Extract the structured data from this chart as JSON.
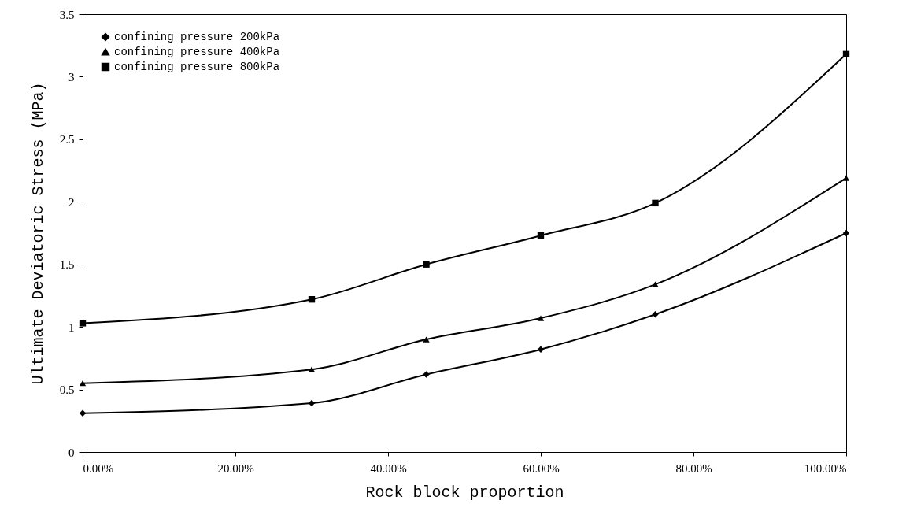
{
  "chart_data": {
    "type": "line",
    "xlabel": "Rock block proportion",
    "ylabel": "Ultimate Deviatoric Stress (MPa)",
    "x": [
      0,
      30,
      45,
      60,
      75,
      100
    ],
    "xlim": [
      0,
      100
    ],
    "xticks": [
      {
        "value": 0,
        "label": "0.00%"
      },
      {
        "value": 20,
        "label": "20.00%"
      },
      {
        "value": 40,
        "label": "40.00%"
      },
      {
        "value": 60,
        "label": "60.00%"
      },
      {
        "value": 80,
        "label": "80.00%"
      },
      {
        "value": 100,
        "label": "100.00%"
      }
    ],
    "ylim": [
      0,
      3.5
    ],
    "yticks": [
      0,
      0.5,
      1,
      1.5,
      2,
      2.5,
      3,
      3.5
    ],
    "grid": false,
    "legend": "top left",
    "series": [
      {
        "name": "confining pressure 200kPa",
        "color": "#000000",
        "marker": "diamond",
        "values": [
          0.31,
          0.39,
          0.62,
          0.82,
          1.1,
          1.75
        ]
      },
      {
        "name": "confining pressure 400kPa",
        "color": "#000000",
        "marker": "triangle",
        "values": [
          0.55,
          0.66,
          0.9,
          1.07,
          1.34,
          2.19
        ]
      },
      {
        "name": "confining pressure 800kPa",
        "color": "#000000",
        "marker": "square",
        "values": [
          1.03,
          1.22,
          1.5,
          1.73,
          1.99,
          3.18
        ]
      }
    ]
  }
}
